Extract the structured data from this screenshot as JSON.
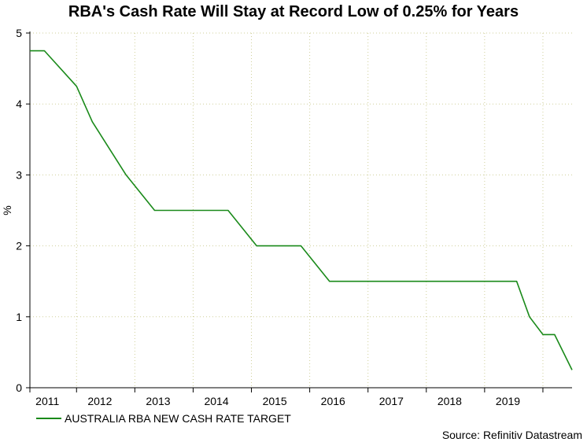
{
  "chart_data": {
    "type": "line",
    "title": "RBA's Cash Rate Will Stay at Record Low of 0.25% for Years",
    "ylabel": "%",
    "xlabel": "",
    "ylim": [
      0,
      5
    ],
    "yticks": [
      "0",
      "1",
      "2",
      "3",
      "4",
      "5"
    ],
    "xlim": [
      2010.8,
      2020.1
    ],
    "xtick_labels": [
      {
        "label": "2011",
        "at": 2011.1
      },
      {
        "label": "2012",
        "at": 2012.0
      },
      {
        "label": "2013",
        "at": 2013.0
      },
      {
        "label": "2014",
        "at": 2014.0
      },
      {
        "label": "2015",
        "at": 2015.0
      },
      {
        "label": "2016",
        "at": 2016.0
      },
      {
        "label": "2017",
        "at": 2017.0
      },
      {
        "label": "2018",
        "at": 2018.0
      },
      {
        "label": "2019",
        "at": 2019.0
      }
    ],
    "grid_x": [
      2011.6,
      2012.6,
      2013.6,
      2014.6,
      2015.6,
      2016.6,
      2017.6,
      2018.6,
      2019.6
    ],
    "series": [
      {
        "name": "AUSTRALIA RBA NEW CASH RATE TARGET",
        "color": "#1a8a1a",
        "x": [
          2010.8,
          2011.05,
          2011.6,
          2011.87,
          2012.45,
          2012.94,
          2014.2,
          2014.69,
          2015.45,
          2015.94,
          2019.15,
          2019.37,
          2019.6,
          2019.8,
          2020.1
        ],
        "y": [
          4.75,
          4.75,
          4.25,
          3.75,
          3.0,
          2.5,
          2.5,
          2.0,
          2.0,
          1.5,
          1.5,
          1.0,
          0.75,
          0.75,
          0.25
        ]
      }
    ],
    "legend": "bottom-left"
  },
  "legend_label": "AUSTRALIA RBA NEW CASH RATE TARGET",
  "source": "Source: Refinitiv Datastream"
}
